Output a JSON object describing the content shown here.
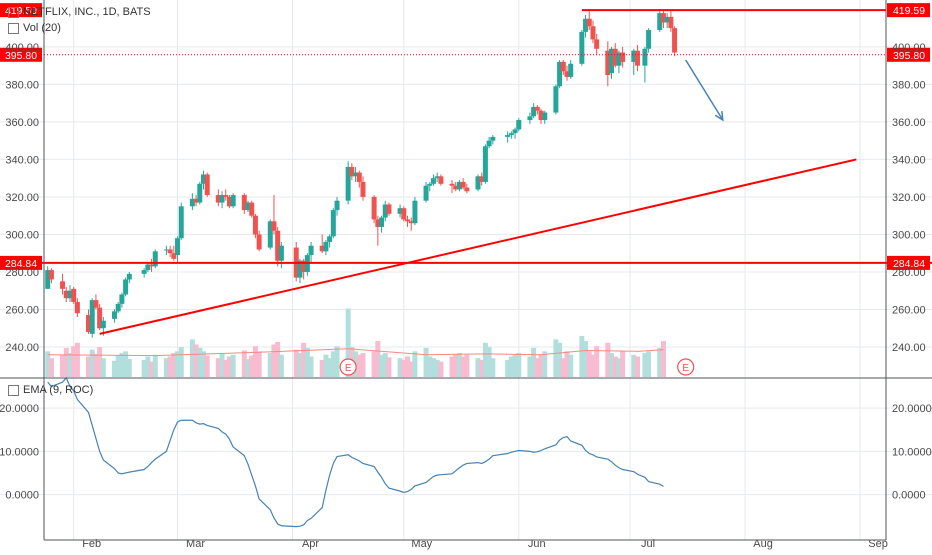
{
  "symbol_title": "NETFLIX, INC., 1D, BATS",
  "volume_label": "Vol (20)",
  "oscillator_label": "EMA (9, ROC)",
  "earnings_marker": "E",
  "colors": {
    "up": "#26a69a",
    "down": "#ef5350",
    "vol_up": "#b2dfdb",
    "vol_down": "#f8bbd0",
    "line": "#4682b4",
    "level": "#ff0000",
    "grid": "#e6e9ee",
    "text": "#4a4a4a"
  },
  "chart_data": [
    {
      "type": "candlestick",
      "title": "NETFLIX, INC., 1D, BATS",
      "x_labels": [
        "Feb",
        "Mar",
        "Apr",
        "May",
        "Jun",
        "Jul",
        "Aug",
        "Sep"
      ],
      "y_ticks": [
        "240.00",
        "260.00",
        "280.00",
        "300.00",
        "320.00",
        "340.00",
        "360.00",
        "380.00",
        "400.00"
      ],
      "ylim": [
        224,
        425
      ],
      "price_levels": [
        {
          "label": "419.59",
          "value": 419.59,
          "style": "solid"
        },
        {
          "label": "395.80",
          "value": 395.8,
          "style": "dotted"
        },
        {
          "label": "284.84",
          "value": 284.84,
          "style": "solid"
        }
      ],
      "trendline": {
        "from": [
          "2018-02-08",
          247
        ],
        "to": [
          "2018-08-31",
          340
        ]
      },
      "arrow": {
        "from": [
          "2018-07-16",
          393
        ],
        "to": [
          "2018-07-26",
          361
        ]
      },
      "earnings_dates": [
        "2018-04-16",
        "2018-07-16"
      ],
      "ohlc": [
        [
          "2018-01-25",
          271,
          283,
          271,
          281
        ],
        [
          "2018-01-26",
          281,
          282,
          274,
          276
        ],
        [
          "2018-01-29",
          275,
          279,
          268,
          271
        ],
        [
          "2018-01-30",
          270,
          272,
          264,
          266
        ],
        [
          "2018-01-31",
          266,
          273,
          264,
          270
        ],
        [
          "2018-02-01",
          271,
          272,
          263,
          264
        ],
        [
          "2018-02-02",
          264,
          266,
          256,
          258
        ],
        [
          "2018-02-05",
          257,
          260,
          247,
          248
        ],
        [
          "2018-02-06",
          247,
          266,
          245,
          265
        ],
        [
          "2018-02-07",
          265,
          268,
          260,
          261
        ],
        [
          "2018-02-08",
          261,
          263,
          249,
          250
        ],
        [
          "2018-02-09",
          250,
          256,
          246,
          254
        ],
        [
          "2018-02-12",
          255,
          260,
          253,
          259
        ],
        [
          "2018-02-13",
          259,
          264,
          258,
          263
        ],
        [
          "2018-02-14",
          263,
          269,
          261,
          268
        ],
        [
          "2018-02-15",
          268,
          277,
          267,
          276
        ],
        [
          "2018-02-16",
          276,
          280,
          274,
          279
        ],
        [
          "2018-02-20",
          279,
          282,
          277,
          281
        ],
        [
          "2018-02-21",
          281,
          285,
          280,
          284
        ],
        [
          "2018-02-22",
          284,
          287,
          280,
          283
        ],
        [
          "2018-02-23",
          283,
          292,
          282,
          291
        ],
        [
          "2018-02-26",
          292,
          294,
          289,
          292
        ],
        [
          "2018-02-27",
          292,
          294,
          288,
          290
        ],
        [
          "2018-02-28",
          290,
          294,
          286,
          287
        ],
        [
          "2018-03-01",
          289,
          299,
          285,
          298
        ],
        [
          "2018-03-02",
          298,
          317,
          297,
          315
        ],
        [
          "2018-03-05",
          315,
          322,
          313,
          319
        ],
        [
          "2018-03-06",
          319,
          321,
          315,
          317
        ],
        [
          "2018-03-07",
          317,
          328,
          316,
          327
        ],
        [
          "2018-03-08",
          327,
          334,
          324,
          332
        ],
        [
          "2018-03-09",
          332,
          333,
          320,
          321
        ],
        [
          "2018-03-12",
          321,
          324,
          315,
          317
        ],
        [
          "2018-03-13",
          317,
          323,
          314,
          321
        ],
        [
          "2018-03-14",
          321,
          324,
          318,
          320
        ],
        [
          "2018-03-15",
          320,
          321,
          314,
          315
        ],
        [
          "2018-03-16",
          315,
          322,
          314,
          321
        ],
        [
          "2018-03-19",
          321,
          322,
          311,
          313
        ],
        [
          "2018-03-20",
          313,
          318,
          312,
          317
        ],
        [
          "2018-03-21",
          317,
          318,
          309,
          310
        ],
        [
          "2018-03-22",
          310,
          311,
          298,
          300
        ],
        [
          "2018-03-23",
          300,
          302,
          291,
          292
        ],
        [
          "2018-03-26",
          293,
          308,
          292,
          307
        ],
        [
          "2018-03-27",
          307,
          321,
          300,
          302
        ],
        [
          "2018-03-28",
          302,
          304,
          283,
          286
        ],
        [
          "2018-03-29",
          286,
          296,
          282,
          294
        ],
        [
          "2018-04-02",
          293,
          296,
          275,
          277
        ],
        [
          "2018-04-03",
          277,
          287,
          274,
          286
        ],
        [
          "2018-04-04",
          286,
          287,
          276,
          280
        ],
        [
          "2018-04-05",
          280,
          290,
          278,
          289
        ],
        [
          "2018-04-06",
          289,
          296,
          285,
          294
        ],
        [
          "2018-04-09",
          294,
          300,
          290,
          291
        ],
        [
          "2018-04-10",
          291,
          297,
          289,
          296
        ],
        [
          "2018-04-11",
          296,
          300,
          293,
          299
        ],
        [
          "2018-04-12",
          299,
          314,
          298,
          313
        ],
        [
          "2018-04-13",
          313,
          320,
          310,
          318
        ],
        [
          "2018-04-16",
          318,
          339,
          316,
          336
        ],
        [
          "2018-04-17",
          336,
          338,
          329,
          331
        ],
        [
          "2018-04-18",
          331,
          336,
          328,
          333
        ],
        [
          "2018-04-19",
          333,
          334,
          325,
          328
        ],
        [
          "2018-04-20",
          328,
          331,
          318,
          320
        ],
        [
          "2018-04-23",
          320,
          321,
          306,
          308
        ],
        [
          "2018-04-24",
          308,
          310,
          294,
          304
        ],
        [
          "2018-04-25",
          304,
          310,
          301,
          309
        ],
        [
          "2018-04-26",
          309,
          318,
          307,
          316
        ],
        [
          "2018-04-27",
          316,
          317,
          310,
          311
        ],
        [
          "2018-04-30",
          311,
          316,
          309,
          314
        ],
        [
          "2018-05-01",
          314,
          315,
          307,
          308
        ],
        [
          "2018-05-02",
          308,
          310,
          304,
          307
        ],
        [
          "2018-05-03",
          307,
          309,
          302,
          306
        ],
        [
          "2018-05-04",
          306,
          320,
          305,
          318
        ],
        [
          "2018-05-07",
          318,
          328,
          317,
          326
        ],
        [
          "2018-05-08",
          326,
          328,
          323,
          327
        ],
        [
          "2018-05-09",
          327,
          332,
          326,
          330
        ],
        [
          "2018-05-10",
          330,
          333,
          328,
          331
        ],
        [
          "2018-05-11",
          331,
          332,
          326,
          327
        ],
        [
          "2018-05-14",
          327,
          329,
          322,
          326
        ],
        [
          "2018-05-15",
          326,
          328,
          323,
          324
        ],
        [
          "2018-05-16",
          324,
          329,
          323,
          328
        ],
        [
          "2018-05-17",
          328,
          330,
          324,
          325
        ],
        [
          "2018-05-18",
          325,
          327,
          322,
          323
        ],
        [
          "2018-05-21",
          324,
          332,
          323,
          331
        ],
        [
          "2018-05-22",
          331,
          333,
          326,
          328
        ],
        [
          "2018-05-23",
          328,
          348,
          327,
          347
        ],
        [
          "2018-05-24",
          347,
          352,
          346,
          350
        ],
        [
          "2018-05-25",
          350,
          353,
          348,
          352
        ],
        [
          "2018-05-29",
          352,
          355,
          349,
          353
        ],
        [
          "2018-05-30",
          353,
          355,
          351,
          354
        ],
        [
          "2018-05-31",
          354,
          357,
          351,
          356
        ],
        [
          "2018-06-01",
          356,
          362,
          355,
          361
        ],
        [
          "2018-06-04",
          361,
          365,
          359,
          363
        ],
        [
          "2018-06-05",
          363,
          370,
          362,
          368
        ],
        [
          "2018-06-06",
          368,
          369,
          364,
          366
        ],
        [
          "2018-06-07",
          366,
          367,
          359,
          361
        ],
        [
          "2018-06-08",
          361,
          366,
          359,
          365
        ],
        [
          "2018-06-11",
          365,
          380,
          364,
          379
        ],
        [
          "2018-06-12",
          379,
          393,
          378,
          392
        ],
        [
          "2018-06-13",
          392,
          393,
          385,
          387
        ],
        [
          "2018-06-14",
          387,
          390,
          382,
          384
        ],
        [
          "2018-06-15",
          384,
          393,
          383,
          391
        ],
        [
          "2018-06-18",
          391,
          409,
          390,
          408
        ],
        [
          "2018-06-19",
          408,
          417,
          405,
          415
        ],
        [
          "2018-06-20",
          415,
          419,
          409,
          411
        ],
        [
          "2018-06-21",
          411,
          414,
          402,
          404
        ],
        [
          "2018-06-22",
          404,
          407,
          396,
          399
        ],
        [
          "2018-06-25",
          398,
          403,
          379,
          385
        ],
        [
          "2018-06-26",
          386,
          400,
          383,
          399
        ],
        [
          "2018-06-27",
          399,
          402,
          389,
          390
        ],
        [
          "2018-06-28",
          390,
          398,
          386,
          397
        ],
        [
          "2018-06-29",
          397,
          400,
          389,
          392
        ],
        [
          "2018-07-02",
          392,
          399,
          385,
          398
        ],
        [
          "2018-07-03",
          398,
          401,
          387,
          390
        ],
        [
          "2018-07-05",
          390,
          400,
          381,
          399
        ],
        [
          "2018-07-06",
          399,
          410,
          397,
          409
        ],
        [
          "2018-07-09",
          409,
          419,
          408,
          418
        ],
        [
          "2018-07-10",
          418,
          419,
          410,
          413
        ],
        [
          "2018-07-11",
          413,
          418,
          410,
          416
        ],
        [
          "2018-07-12",
          416,
          419,
          408,
          410
        ],
        [
          "2018-07-13",
          410,
          411,
          395,
          397
        ]
      ],
      "volume": [
        30,
        22,
        26,
        34,
        28,
        36,
        40,
        24,
        32,
        27,
        35,
        22,
        19,
        25,
        28,
        30,
        21,
        20,
        24,
        18,
        26,
        22,
        24,
        28,
        30,
        35,
        44,
        38,
        34,
        30,
        25,
        22,
        27,
        20,
        24,
        26,
        31,
        21,
        25,
        36,
        30,
        28,
        38,
        41,
        26,
        32,
        28,
        40,
        34,
        24,
        20,
        26,
        22,
        30,
        36,
        80,
        35,
        30,
        26,
        28,
        30,
        42,
        26,
        28,
        23,
        22,
        20,
        24,
        18,
        30,
        34,
        24,
        22,
        20,
        18,
        24,
        26,
        28,
        24,
        26,
        22,
        20,
        40,
        35,
        22,
        20,
        24,
        26,
        28,
        24,
        34,
        22,
        26,
        30,
        44,
        40,
        22,
        30,
        26,
        48,
        42,
        30,
        26,
        36,
        40,
        28,
        24,
        22,
        30,
        26,
        24,
        28,
        30,
        34,
        42
      ],
      "volume_ma": [
        [
          0,
          26
        ],
        [
          20,
          25
        ],
        [
          40,
          29
        ],
        [
          55,
          33
        ],
        [
          70,
          26
        ],
        [
          82,
          27
        ],
        [
          92,
          26
        ],
        [
          100,
          31
        ],
        [
          110,
          30
        ],
        [
          114,
          32
        ]
      ]
    },
    {
      "type": "line",
      "title": "EMA (9, ROC)",
      "y_ticks": [
        "0.0000",
        "10.0000",
        "20.0000"
      ],
      "ylim": [
        -10.5,
        26.5
      ],
      "values": [
        26,
        25,
        26,
        27,
        25,
        24,
        22,
        19,
        16,
        13,
        10,
        8,
        6,
        5,
        4.8,
        5,
        5.2,
        5.8,
        6.5,
        7.4,
        8.2,
        10,
        12.5,
        15,
        16.8,
        17.2,
        17.2,
        16.6,
        16.3,
        16.4,
        16,
        15.3,
        14.5,
        14,
        12.8,
        11,
        9,
        7,
        4.5,
        2,
        -1,
        -3.5,
        -5.4,
        -6.8,
        -7.2,
        -7.4,
        -7.3,
        -7,
        -6,
        -5.5,
        -3,
        1,
        4.5,
        7.2,
        8.8,
        9.2,
        8.6,
        8.2,
        7.8,
        7.2,
        6.5,
        5.2,
        4,
        2.5,
        1.5,
        0.8,
        0.5,
        0.7,
        1.2,
        2,
        2.8,
        3.5,
        4.2,
        4.5,
        4.6,
        4.8,
        5.5,
        6.2,
        6.8,
        7.2,
        7.4,
        7.2,
        7.6,
        8.2,
        9,
        9.5,
        9.8,
        10,
        10.2,
        10,
        9.8,
        9.9,
        10.2,
        10.6,
        11.5,
        12.6,
        13.2,
        13.4,
        12.4,
        11.4,
        10.2,
        9.5,
        9.2,
        8.7,
        8.2,
        7.6,
        6.8,
        6.2,
        5.8,
        5.3,
        4.7,
        4,
        3,
        2.4,
        1.9
      ]
    }
  ]
}
